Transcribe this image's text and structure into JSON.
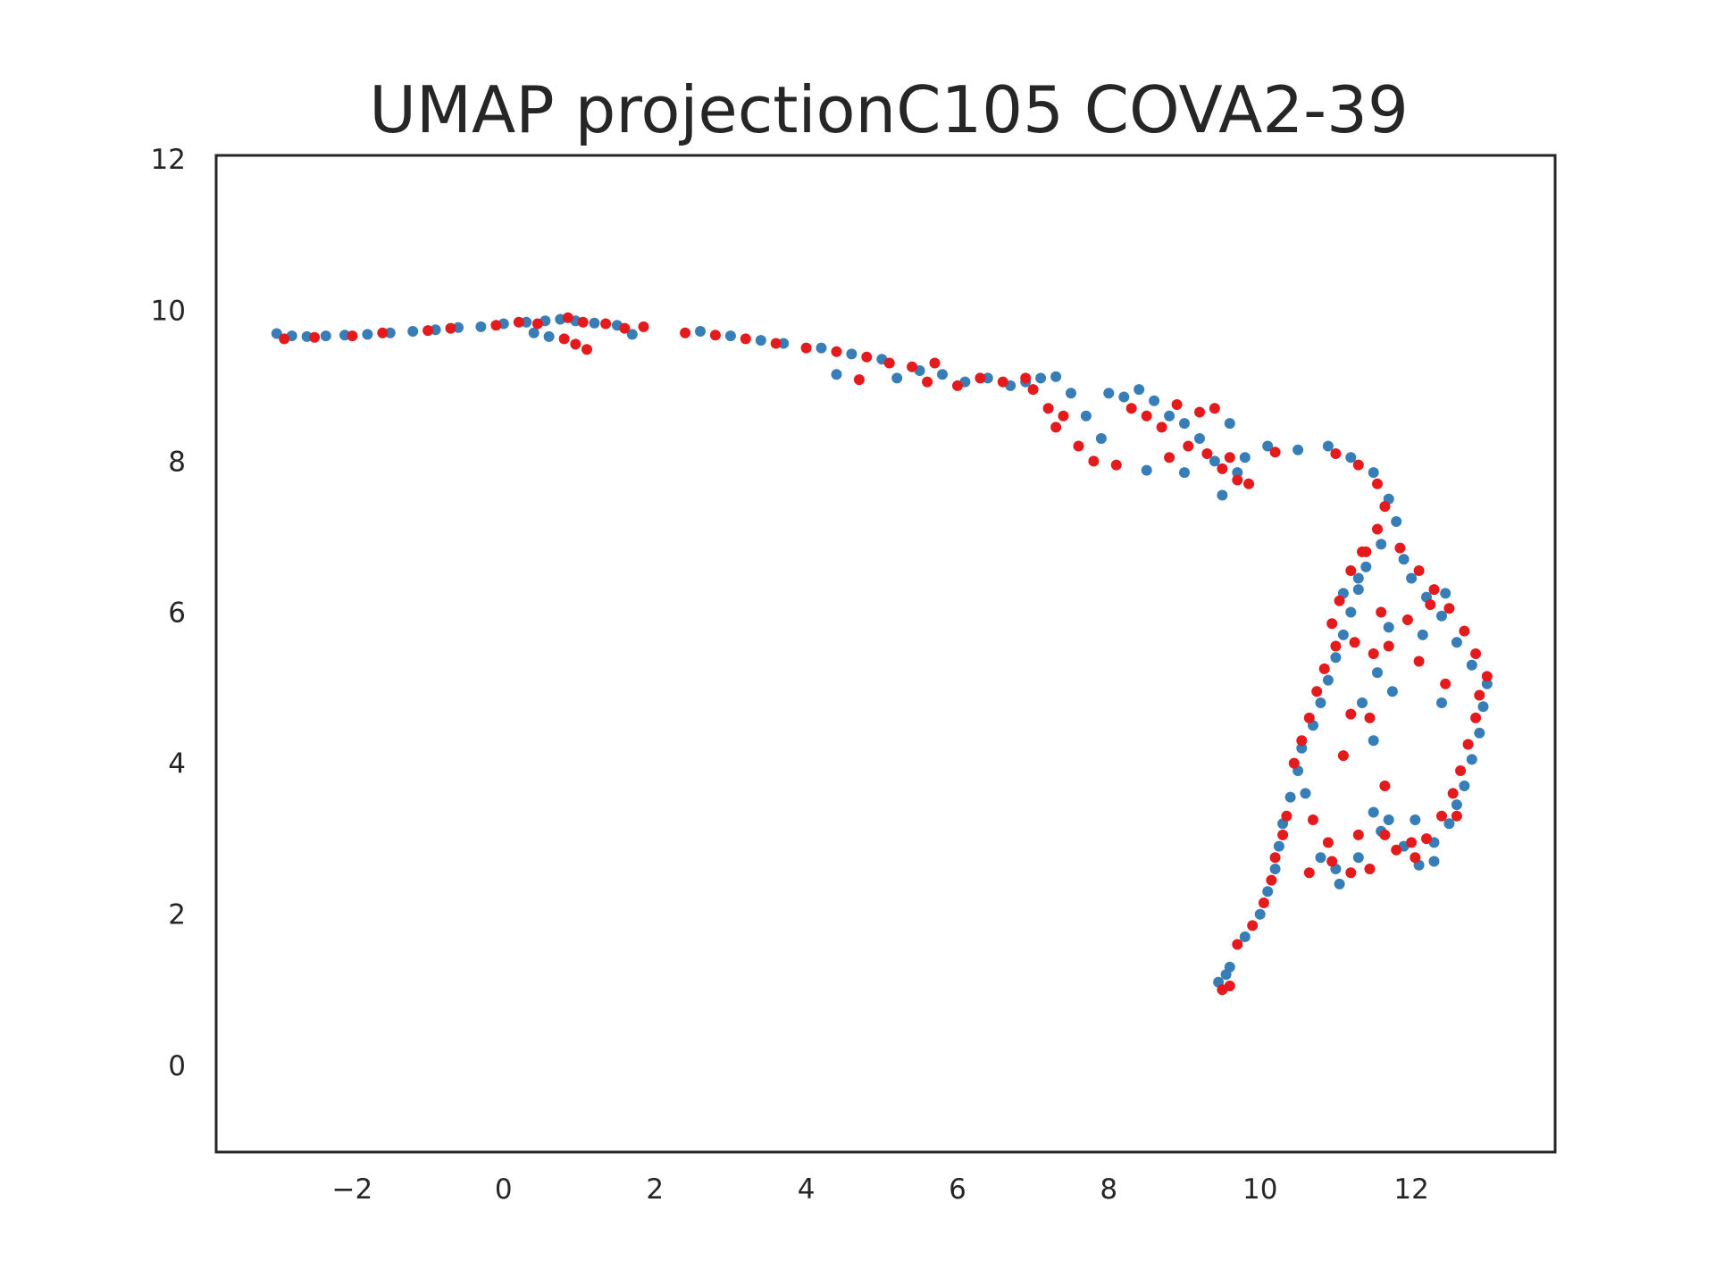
{
  "chart_data": {
    "type": "scatter",
    "title": "UMAP projectionC105 COVA2-39",
    "xlabel": "",
    "ylabel": "",
    "xlim": [
      -3.8,
      13.9
    ],
    "ylim": [
      -1.15,
      12.05
    ],
    "xticks": [
      -2,
      0,
      2,
      4,
      6,
      8,
      10,
      12
    ],
    "xtick_labels": [
      "−2",
      "0",
      "2",
      "4",
      "6",
      "8",
      "10",
      "12"
    ],
    "yticks": [
      0,
      2,
      4,
      6,
      8,
      10,
      12
    ],
    "ytick_labels": [
      "0",
      "2",
      "4",
      "6",
      "8",
      "10",
      "12"
    ],
    "grid": false,
    "legend": "none",
    "colors": {
      "series_a": "#377eb8",
      "series_b": "#e41a1c",
      "axes": "#262626"
    },
    "series": [
      {
        "color": "#377eb8",
        "points": [
          [
            -3.0,
            9.69
          ],
          [
            -2.8,
            9.66
          ],
          [
            -2.6,
            9.65
          ],
          [
            -2.35,
            9.66
          ],
          [
            -2.1,
            9.67
          ],
          [
            -1.8,
            9.68
          ],
          [
            -1.5,
            9.7
          ],
          [
            -1.2,
            9.72
          ],
          [
            -0.9,
            9.74
          ],
          [
            -0.6,
            9.77
          ],
          [
            -0.3,
            9.78
          ],
          [
            0.0,
            9.82
          ],
          [
            0.3,
            9.84
          ],
          [
            0.55,
            9.86
          ],
          [
            0.75,
            9.88
          ],
          [
            0.95,
            9.86
          ],
          [
            1.2,
            9.83
          ],
          [
            1.5,
            9.8
          ],
          [
            1.7,
            9.68
          ],
          [
            0.6,
            9.65
          ],
          [
            0.4,
            9.7
          ],
          [
            2.6,
            9.72
          ],
          [
            3.0,
            9.66
          ],
          [
            3.4,
            9.6
          ],
          [
            3.7,
            9.56
          ],
          [
            4.2,
            9.5
          ],
          [
            4.6,
            9.42
          ],
          [
            5.0,
            9.35
          ],
          [
            5.2,
            9.1
          ],
          [
            5.5,
            9.2
          ],
          [
            5.8,
            9.15
          ],
          [
            6.1,
            9.05
          ],
          [
            6.4,
            9.1
          ],
          [
            6.7,
            9.0
          ],
          [
            6.9,
            9.05
          ],
          [
            7.1,
            9.1
          ],
          [
            7.3,
            9.12
          ],
          [
            7.5,
            8.9
          ],
          [
            7.7,
            8.6
          ],
          [
            7.9,
            8.3
          ],
          [
            8.0,
            8.9
          ],
          [
            8.2,
            8.85
          ],
          [
            8.4,
            8.95
          ],
          [
            8.6,
            8.8
          ],
          [
            8.8,
            8.6
          ],
          [
            9.0,
            8.5
          ],
          [
            9.2,
            8.3
          ],
          [
            9.4,
            8.0
          ],
          [
            9.6,
            8.5
          ],
          [
            9.7,
            7.85
          ],
          [
            9.5,
            7.55
          ],
          [
            9.8,
            8.05
          ],
          [
            10.1,
            8.2
          ],
          [
            10.5,
            8.15
          ],
          [
            8.5,
            7.88
          ],
          [
            9.0,
            7.85
          ],
          [
            4.4,
            9.15
          ],
          [
            10.9,
            8.2
          ],
          [
            11.2,
            8.05
          ],
          [
            11.5,
            7.85
          ],
          [
            11.7,
            7.5
          ],
          [
            11.8,
            7.2
          ],
          [
            11.6,
            6.9
          ],
          [
            11.4,
            6.6
          ],
          [
            11.3,
            6.3
          ],
          [
            11.2,
            6.0
          ],
          [
            11.1,
            5.7
          ],
          [
            11.0,
            5.4
          ],
          [
            10.9,
            5.1
          ],
          [
            10.8,
            4.8
          ],
          [
            10.7,
            4.5
          ],
          [
            10.55,
            4.2
          ],
          [
            10.5,
            3.9
          ],
          [
            10.4,
            3.55
          ],
          [
            10.3,
            3.2
          ],
          [
            10.25,
            2.9
          ],
          [
            10.2,
            2.6
          ],
          [
            10.1,
            2.3
          ],
          [
            10.0,
            2.0
          ],
          [
            9.8,
            1.7
          ],
          [
            9.6,
            1.3
          ],
          [
            9.45,
            1.1
          ],
          [
            9.55,
            1.2
          ],
          [
            10.6,
            3.6
          ],
          [
            10.8,
            2.75
          ],
          [
            11.0,
            2.6
          ],
          [
            11.3,
            2.75
          ],
          [
            11.05,
            2.4
          ],
          [
            11.6,
            3.1
          ],
          [
            11.5,
            3.35
          ],
          [
            11.7,
            3.25
          ],
          [
            11.9,
            2.9
          ],
          [
            12.1,
            2.65
          ],
          [
            12.3,
            2.95
          ],
          [
            12.5,
            3.2
          ],
          [
            12.6,
            3.45
          ],
          [
            12.7,
            3.7
          ],
          [
            12.8,
            4.05
          ],
          [
            12.9,
            4.4
          ],
          [
            12.95,
            4.75
          ],
          [
            13.0,
            5.05
          ],
          [
            12.8,
            5.3
          ],
          [
            12.6,
            5.6
          ],
          [
            12.4,
            5.95
          ],
          [
            12.2,
            6.2
          ],
          [
            12.0,
            6.45
          ],
          [
            11.9,
            6.7
          ],
          [
            11.7,
            5.8
          ],
          [
            11.55,
            5.2
          ],
          [
            11.75,
            4.95
          ],
          [
            12.4,
            4.8
          ],
          [
            12.45,
            6.25
          ],
          [
            11.3,
            6.45
          ],
          [
            11.1,
            6.25
          ],
          [
            11.5,
            4.3
          ],
          [
            11.35,
            4.8
          ],
          [
            12.05,
            3.25
          ],
          [
            12.3,
            2.7
          ],
          [
            12.15,
            5.7
          ]
        ]
      },
      {
        "color": "#e41a1c",
        "points": [
          [
            -2.9,
            9.62
          ],
          [
            -2.5,
            9.64
          ],
          [
            -2.0,
            9.66
          ],
          [
            -1.6,
            9.7
          ],
          [
            -1.0,
            9.73
          ],
          [
            -0.7,
            9.76
          ],
          [
            -0.1,
            9.8
          ],
          [
            0.2,
            9.84
          ],
          [
            0.45,
            9.82
          ],
          [
            0.85,
            9.9
          ],
          [
            1.05,
            9.84
          ],
          [
            1.35,
            9.82
          ],
          [
            1.6,
            9.76
          ],
          [
            1.85,
            9.78
          ],
          [
            0.95,
            9.55
          ],
          [
            1.1,
            9.48
          ],
          [
            0.8,
            9.62
          ],
          [
            2.4,
            9.7
          ],
          [
            2.8,
            9.67
          ],
          [
            3.2,
            9.62
          ],
          [
            3.6,
            9.56
          ],
          [
            4.0,
            9.5
          ],
          [
            4.4,
            9.45
          ],
          [
            4.8,
            9.38
          ],
          [
            5.1,
            9.3
          ],
          [
            5.4,
            9.25
          ],
          [
            5.7,
            9.3
          ],
          [
            4.7,
            9.08
          ],
          [
            5.6,
            9.05
          ],
          [
            6.0,
            9.0
          ],
          [
            6.3,
            9.1
          ],
          [
            6.6,
            9.05
          ],
          [
            6.9,
            9.1
          ],
          [
            7.0,
            8.95
          ],
          [
            7.2,
            8.7
          ],
          [
            7.3,
            8.45
          ],
          [
            7.4,
            8.6
          ],
          [
            7.6,
            8.2
          ],
          [
            7.8,
            8.0
          ],
          [
            8.1,
            7.95
          ],
          [
            8.3,
            8.7
          ],
          [
            8.5,
            8.6
          ],
          [
            8.7,
            8.45
          ],
          [
            8.9,
            8.75
          ],
          [
            9.05,
            8.2
          ],
          [
            9.2,
            8.65
          ],
          [
            9.4,
            8.7
          ],
          [
            9.6,
            8.05
          ],
          [
            9.7,
            7.75
          ],
          [
            9.85,
            7.7
          ],
          [
            9.5,
            7.9
          ],
          [
            10.2,
            8.12
          ],
          [
            8.8,
            8.05
          ],
          [
            9.3,
            8.1
          ],
          [
            11.0,
            8.1
          ],
          [
            11.3,
            7.95
          ],
          [
            11.55,
            7.7
          ],
          [
            11.65,
            7.4
          ],
          [
            11.55,
            7.1
          ],
          [
            11.35,
            6.8
          ],
          [
            11.2,
            6.55
          ],
          [
            11.05,
            6.15
          ],
          [
            10.95,
            5.85
          ],
          [
            11.0,
            5.55
          ],
          [
            10.85,
            5.25
          ],
          [
            10.75,
            4.95
          ],
          [
            10.65,
            4.6
          ],
          [
            10.55,
            4.3
          ],
          [
            10.45,
            4.0
          ],
          [
            10.35,
            3.3
          ],
          [
            10.3,
            3.05
          ],
          [
            10.2,
            2.75
          ],
          [
            10.15,
            2.45
          ],
          [
            10.05,
            2.15
          ],
          [
            9.9,
            1.85
          ],
          [
            9.7,
            1.6
          ],
          [
            9.5,
            1.0
          ],
          [
            9.6,
            1.05
          ],
          [
            10.7,
            3.25
          ],
          [
            10.65,
            2.55
          ],
          [
            10.95,
            2.7
          ],
          [
            11.2,
            2.55
          ],
          [
            11.45,
            2.6
          ],
          [
            10.9,
            2.95
          ],
          [
            11.65,
            3.05
          ],
          [
            11.8,
            2.85
          ],
          [
            12.0,
            2.95
          ],
          [
            12.2,
            3.0
          ],
          [
            12.4,
            3.3
          ],
          [
            12.55,
            3.6
          ],
          [
            12.65,
            3.9
          ],
          [
            12.75,
            4.25
          ],
          [
            12.85,
            4.6
          ],
          [
            12.9,
            4.9
          ],
          [
            13.0,
            5.15
          ],
          [
            12.85,
            5.45
          ],
          [
            12.7,
            5.75
          ],
          [
            12.5,
            6.05
          ],
          [
            12.3,
            6.3
          ],
          [
            12.1,
            6.55
          ],
          [
            11.85,
            6.85
          ],
          [
            11.6,
            6.0
          ],
          [
            11.5,
            5.45
          ],
          [
            11.7,
            5.55
          ],
          [
            11.95,
            5.9
          ],
          [
            12.1,
            5.35
          ],
          [
            11.45,
            4.6
          ],
          [
            11.65,
            3.7
          ],
          [
            11.25,
            5.6
          ],
          [
            11.2,
            4.65
          ],
          [
            12.25,
            6.1
          ],
          [
            11.4,
            6.8
          ],
          [
            11.1,
            4.1
          ],
          [
            12.6,
            3.3
          ],
          [
            12.45,
            5.05
          ],
          [
            11.3,
            3.05
          ],
          [
            12.05,
            2.75
          ]
        ]
      }
    ]
  }
}
